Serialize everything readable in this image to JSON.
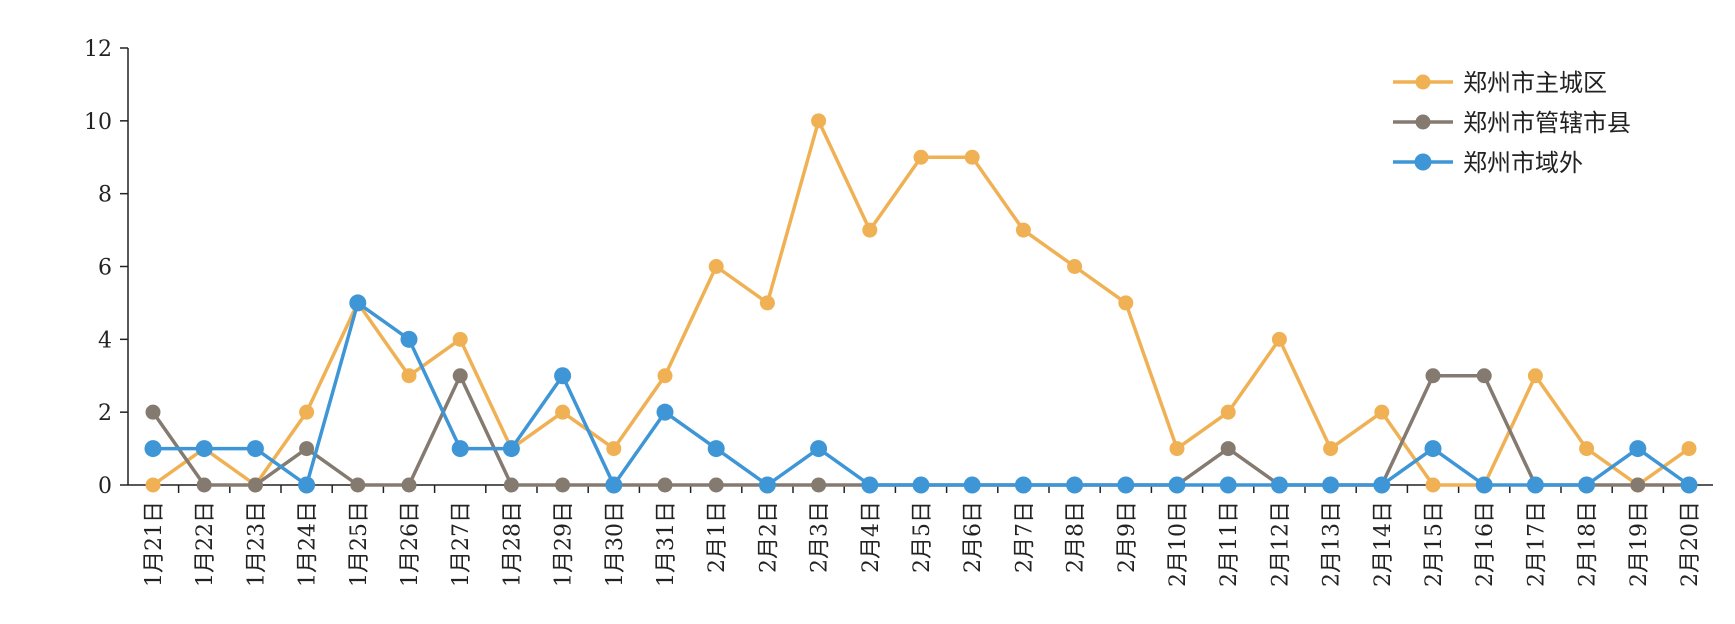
{
  "chart_data": {
    "type": "line",
    "categories": [
      "1月21日",
      "1月22日",
      "1月23日",
      "1月24日",
      "1月25日",
      "1月26日",
      "1月27日",
      "1月28日",
      "1月29日",
      "1月30日",
      "1月31日",
      "2月1日",
      "2月2日",
      "2月3日",
      "2月4日",
      "2月5日",
      "2月6日",
      "2月7日",
      "2月8日",
      "2月9日",
      "2月10日",
      "2月11日",
      "2月12日",
      "2月13日",
      "2月14日",
      "2月15日",
      "2月16日",
      "2月17日",
      "2月18日",
      "2月19日",
      "2月20日"
    ],
    "series": [
      {
        "name": "郑州市主城区",
        "color": "#F0B155",
        "values": [
          0,
          1,
          0,
          2,
          5,
          3,
          4,
          1,
          2,
          1,
          3,
          6,
          5,
          10,
          7,
          9,
          9,
          7,
          6,
          5,
          1,
          2,
          4,
          1,
          2,
          0,
          0,
          3,
          1,
          0,
          1
        ]
      },
      {
        "name": "郑州市管辖市县",
        "color": "#857A70",
        "values": [
          2,
          0,
          0,
          1,
          0,
          0,
          3,
          0,
          0,
          0,
          0,
          0,
          0,
          0,
          0,
          0,
          0,
          0,
          0,
          0,
          0,
          1,
          0,
          0,
          0,
          3,
          3,
          0,
          0,
          0,
          0
        ]
      },
      {
        "name": "郑州市域外",
        "color": "#3F96D6",
        "values": [
          1,
          1,
          1,
          0,
          5,
          4,
          1,
          1,
          3,
          0,
          2,
          1,
          0,
          1,
          0,
          0,
          0,
          0,
          0,
          0,
          0,
          0,
          0,
          0,
          0,
          1,
          0,
          0,
          0,
          1,
          0
        ]
      }
    ],
    "y_ticks": [
      "0",
      "2",
      "4",
      "6",
      "8",
      "10",
      "12"
    ],
    "ylim": [
      0,
      12
    ],
    "grid": false,
    "legend_position": "top-right"
  }
}
